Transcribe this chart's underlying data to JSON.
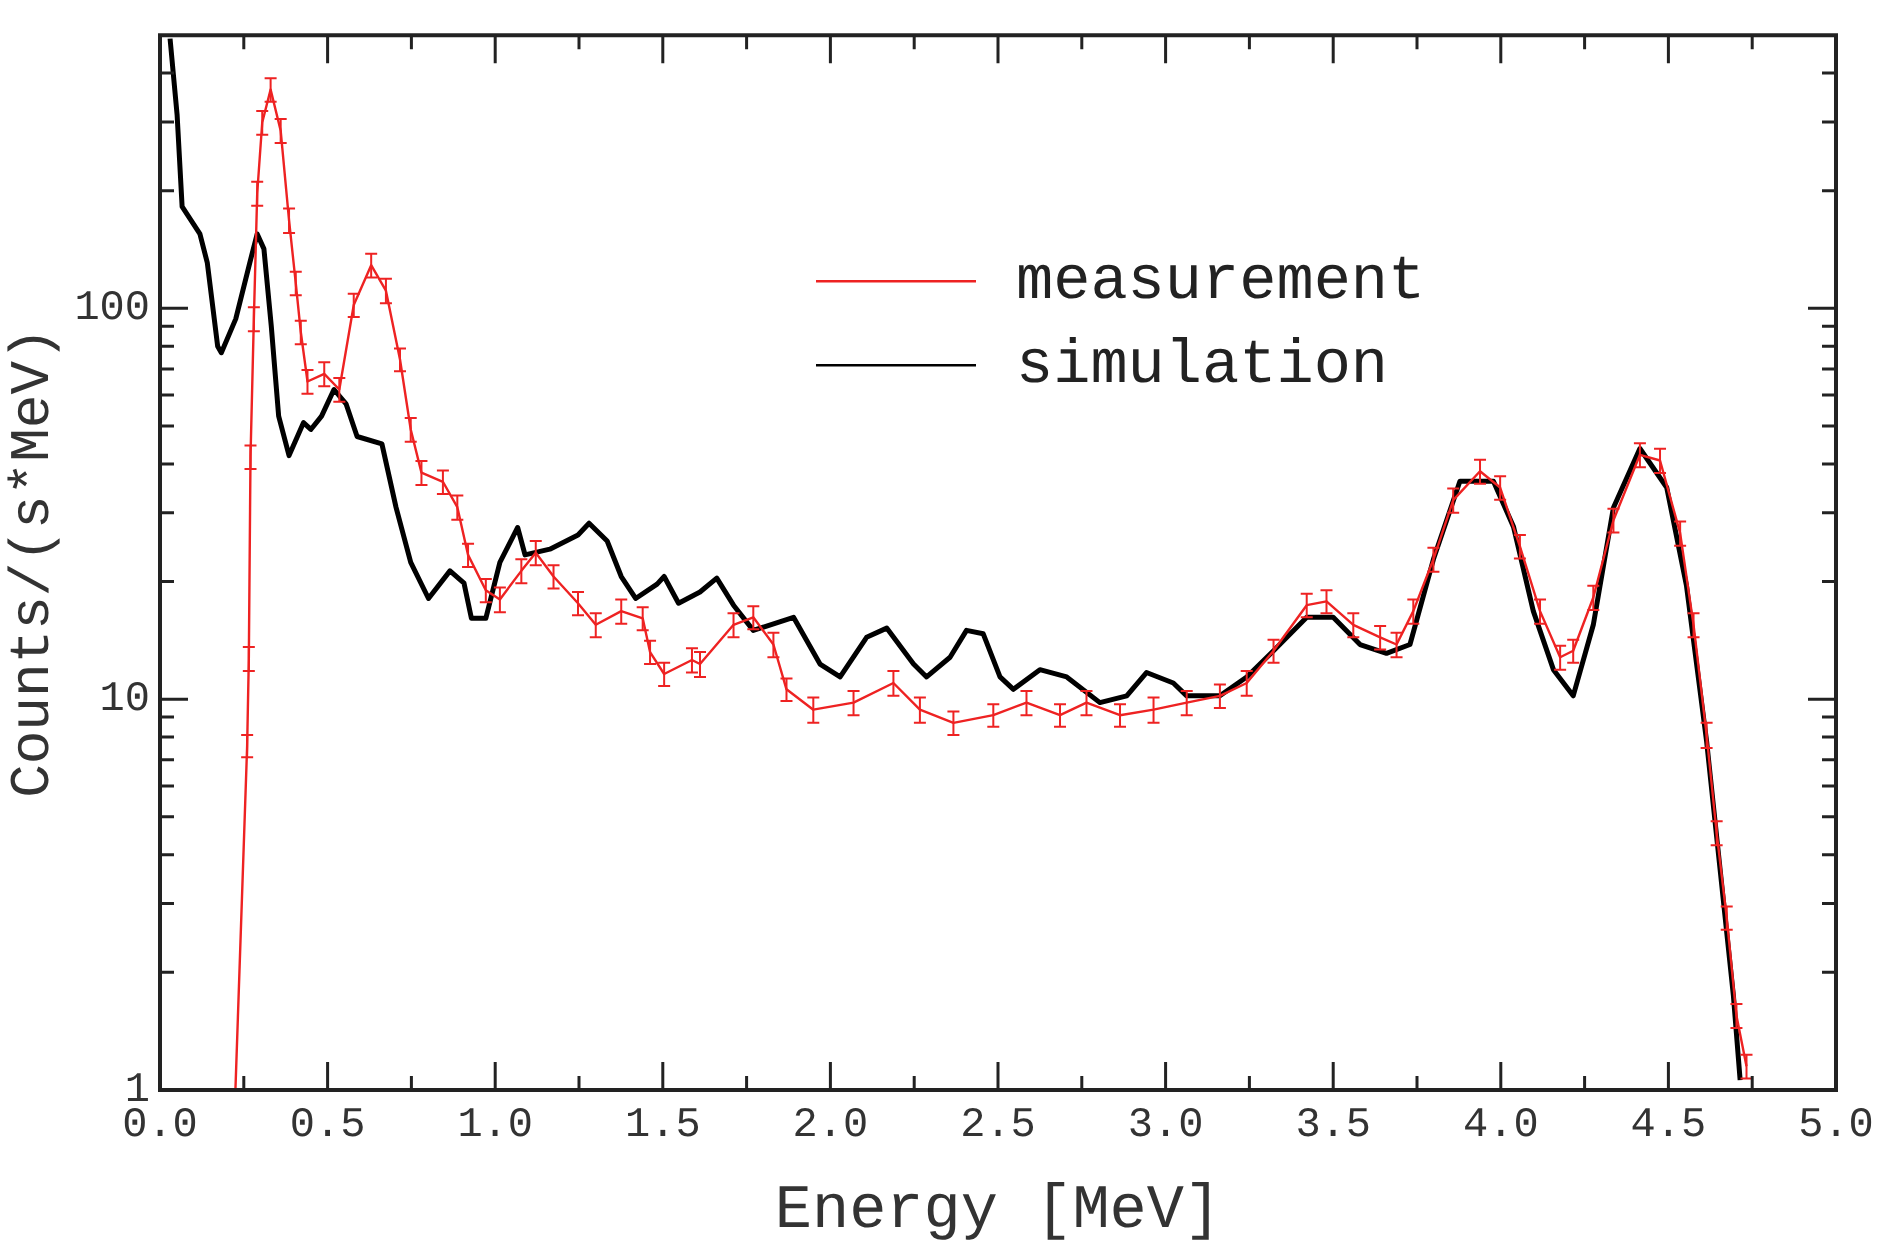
{
  "chart_data": {
    "type": "line",
    "xlabel": "Energy [MeV]",
    "ylabel": "Counts/(s*MeV)",
    "log": "y",
    "grid": false,
    "legend": "top right",
    "marker": "none",
    "line_style": "solid",
    "xlim": [
      0,
      5
    ],
    "ylim": [
      1,
      500
    ],
    "xticks": [
      {
        "value": 0,
        "label": "0.0"
      },
      {
        "value": 0.25,
        "label": null
      },
      {
        "value": 0.5,
        "label": "0.5"
      },
      {
        "value": 0.75,
        "label": null
      },
      {
        "value": 1,
        "label": "1.0"
      },
      {
        "value": 1.25,
        "label": null
      },
      {
        "value": 1.5,
        "label": "1.5"
      },
      {
        "value": 1.75,
        "label": null
      },
      {
        "value": 2,
        "label": "2.0"
      },
      {
        "value": 2.25,
        "label": null
      },
      {
        "value": 2.5,
        "label": "2.5"
      },
      {
        "value": 2.75,
        "label": null
      },
      {
        "value": 3,
        "label": "3.0"
      },
      {
        "value": 3.25,
        "label": null
      },
      {
        "value": 3.5,
        "label": "3.5"
      },
      {
        "value": 3.75,
        "label": null
      },
      {
        "value": 4,
        "label": "4.0"
      },
      {
        "value": 4.25,
        "label": null
      },
      {
        "value": 4.5,
        "label": "4.5"
      },
      {
        "value": 4.75,
        "label": null
      },
      {
        "value": 5,
        "label": "5.0"
      }
    ],
    "yticks": [
      1,
      {
        "value": 2,
        "label": null
      },
      {
        "value": 3,
        "label": null
      },
      {
        "value": 4,
        "label": null
      },
      {
        "value": 5,
        "label": null
      },
      {
        "value": 6,
        "label": null
      },
      {
        "value": 7,
        "label": null
      },
      {
        "value": 8,
        "label": null
      },
      {
        "value": 9,
        "label": null
      },
      10,
      {
        "value": 20,
        "label": null
      },
      {
        "value": 30,
        "label": null
      },
      {
        "value": 40,
        "label": null
      },
      {
        "value": 50,
        "label": null
      },
      {
        "value": 60,
        "label": null
      },
      {
        "value": 70,
        "label": null
      },
      {
        "value": 80,
        "label": null
      },
      {
        "value": 90,
        "label": null
      },
      100,
      {
        "value": 200,
        "label": null
      },
      {
        "value": 300,
        "label": null
      },
      {
        "value": 400,
        "label": null
      }
    ],
    "series": [
      {
        "name": "measurement",
        "color": "#ee2222",
        "type": "line",
        "x": [
          0.225,
          0.26,
          0.265,
          0.27,
          0.28,
          0.29,
          0.305,
          0.33,
          0.36,
          0.385,
          0.405,
          0.42,
          0.44,
          0.49,
          0.535,
          0.578,
          0.63,
          0.674,
          0.716,
          0.748,
          0.78,
          0.844,
          0.887,
          0.919,
          0.972,
          1.014,
          1.078,
          1.121,
          1.174,
          1.247,
          1.3,
          1.376,
          1.44,
          1.462,
          1.504,
          1.587,
          1.611,
          1.711,
          1.77,
          1.83,
          1.869,
          1.949,
          2.069,
          2.188,
          2.267,
          2.367,
          2.486,
          2.585,
          2.685,
          2.764,
          2.864,
          2.964,
          3.063,
          3.162,
          3.242,
          3.322,
          3.421,
          3.48,
          3.56,
          3.64,
          3.689,
          3.739,
          3.799,
          3.858,
          3.938,
          3.998,
          4.057,
          4.117,
          4.177,
          4.216,
          4.276,
          4.336,
          4.415,
          4.475,
          4.535,
          4.575,
          4.614,
          4.644,
          4.674,
          4.703,
          4.733
        ],
        "values": [
          1,
          7.6,
          12.7,
          41.7,
          94,
          197,
          299,
          363,
          285,
          168,
          116,
          87,
          65,
          68,
          62,
          102,
          129,
          111,
          74,
          49,
          38,
          36,
          31,
          23.4,
          19,
          18,
          21.3,
          23.7,
          20.6,
          17.6,
          15.5,
          16.8,
          16.1,
          13.2,
          11.6,
          12.6,
          12.3,
          15.5,
          16.2,
          13.8,
          10.6,
          9.4,
          9.8,
          11,
          9.4,
          8.7,
          9.1,
          9.8,
          9.1,
          9.8,
          9.1,
          9.4,
          9.8,
          10.2,
          11,
          13.3,
          17.4,
          17.8,
          15.5,
          14.4,
          13.8,
          16.8,
          22.8,
          32.3,
          38.3,
          34.8,
          24.6,
          16.8,
          12.8,
          13.3,
          18.2,
          28.7,
          42.2,
          40.8,
          26.6,
          15.5,
          8.1,
          4.55,
          2.76,
          1.55,
          1.15
        ],
        "errors": [
          null,
          0.5,
          0.9,
          2.9,
          6.6,
          14,
          21,
          25,
          20,
          12,
          8,
          6,
          4.5,
          4.8,
          4.3,
          7,
          9,
          8,
          5,
          3.4,
          2.7,
          2.5,
          2.2,
          1.6,
          1.3,
          1.3,
          1.5,
          1.7,
          1.4,
          1.2,
          1.1,
          1.2,
          1.1,
          0.9,
          0.8,
          0.9,
          0.9,
          1.1,
          1.1,
          1,
          0.7,
          0.7,
          0.7,
          0.8,
          0.7,
          0.6,
          0.6,
          0.7,
          0.6,
          0.7,
          0.6,
          0.7,
          0.7,
          0.7,
          0.8,
          0.9,
          1.2,
          1.2,
          1.1,
          1,
          1,
          1.2,
          1.6,
          2.3,
          2.7,
          2.4,
          1.7,
          1.2,
          0.9,
          0.9,
          1.3,
          2,
          3,
          2.9,
          1.9,
          1.1,
          0.6,
          0.32,
          0.19,
          0.11,
          0.08
        ]
      },
      {
        "name": "simulation",
        "color": "#000000",
        "type": "line",
        "x": [
          0.03,
          0.051,
          0.066,
          0.119,
          0.141,
          0.172,
          0.183,
          0.226,
          0.268,
          0.29,
          0.31,
          0.332,
          0.354,
          0.385,
          0.428,
          0.45,
          0.482,
          0.519,
          0.555,
          0.588,
          0.662,
          0.704,
          0.748,
          0.801,
          0.865,
          0.907,
          0.929,
          0.972,
          1.014,
          1.067,
          1.089,
          1.163,
          1.247,
          1.28,
          1.334,
          1.376,
          1.419,
          1.483,
          1.504,
          1.547,
          1.611,
          1.661,
          1.711,
          1.77,
          1.89,
          1.969,
          2.029,
          2.108,
          2.168,
          2.248,
          2.287,
          2.357,
          2.406,
          2.456,
          2.506,
          2.546,
          2.625,
          2.705,
          2.804,
          2.884,
          2.943,
          3.023,
          3.063,
          3.162,
          3.242,
          3.322,
          3.421,
          3.5,
          3.58,
          3.659,
          3.729,
          3.799,
          3.878,
          3.978,
          4.038,
          4.097,
          4.157,
          4.216,
          4.276,
          4.336,
          4.415,
          4.495,
          4.554,
          4.614,
          4.694,
          4.714
        ],
        "values": [
          490,
          313,
          182,
          155,
          131,
          80,
          77,
          94,
          131,
          155,
          142,
          90,
          53,
          42,
          51,
          49,
          53,
          62,
          57,
          47,
          45,
          31,
          22.4,
          18.1,
          21.3,
          19.8,
          16.1,
          16.1,
          22.4,
          27.5,
          23.4,
          24.2,
          26.3,
          28.2,
          25.4,
          20.6,
          18.1,
          19.7,
          20.6,
          17.6,
          18.8,
          20.4,
          17.4,
          15,
          16.2,
          12.3,
          11.4,
          14.4,
          15.2,
          12.3,
          11.4,
          12.8,
          15,
          14.7,
          11.4,
          10.6,
          11.9,
          11.4,
          9.8,
          10.2,
          11.7,
          11,
          10.2,
          10.2,
          11.4,
          13.3,
          16.2,
          16.2,
          13.8,
          13.1,
          13.8,
          22.8,
          36.1,
          36.1,
          27.6,
          16.8,
          11.9,
          10.2,
          15.5,
          30.9,
          43.8,
          34.8,
          19.5,
          7.8,
          1.74,
          1.06
        ]
      }
    ]
  }
}
